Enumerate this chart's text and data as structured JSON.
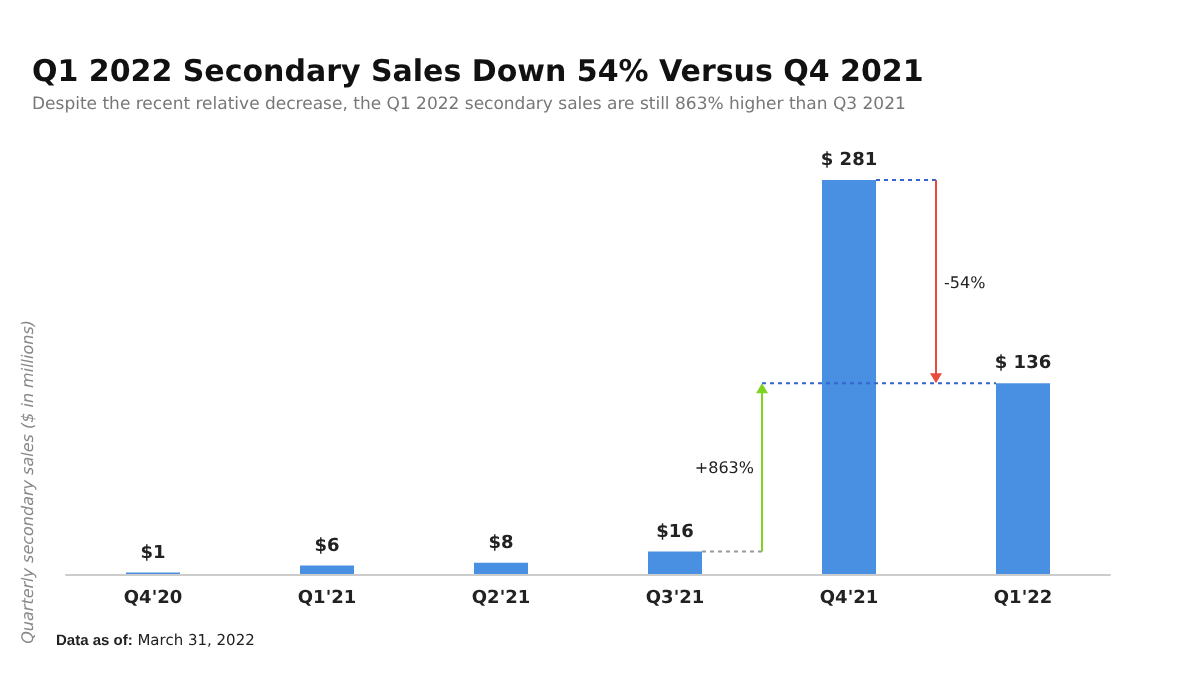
{
  "chart_data": {
    "type": "bar",
    "title": "Q1 2022 Secondary Sales Down 54% Versus Q4 2021",
    "subtitle": "Despite the recent relative decrease, the Q1 2022 secondary sales are still 863% higher than Q3 2021",
    "ylabel": "Quarterly secondary sales ($ in millions)",
    "categories": [
      "Q4'20",
      "Q1'21",
      "Q2'21",
      "Q3'21",
      "Q4'21",
      "Q1'22"
    ],
    "values": [
      1,
      6,
      8,
      16,
      281,
      136
    ],
    "value_labels": [
      "$1",
      "$6",
      "$8",
      "$16",
      "$ 281",
      "$ 136"
    ],
    "color": "#4a90e2",
    "annotations": [
      "+863%",
      "-54%",
      "Data as of: March 31, 2022"
    ]
  }
}
